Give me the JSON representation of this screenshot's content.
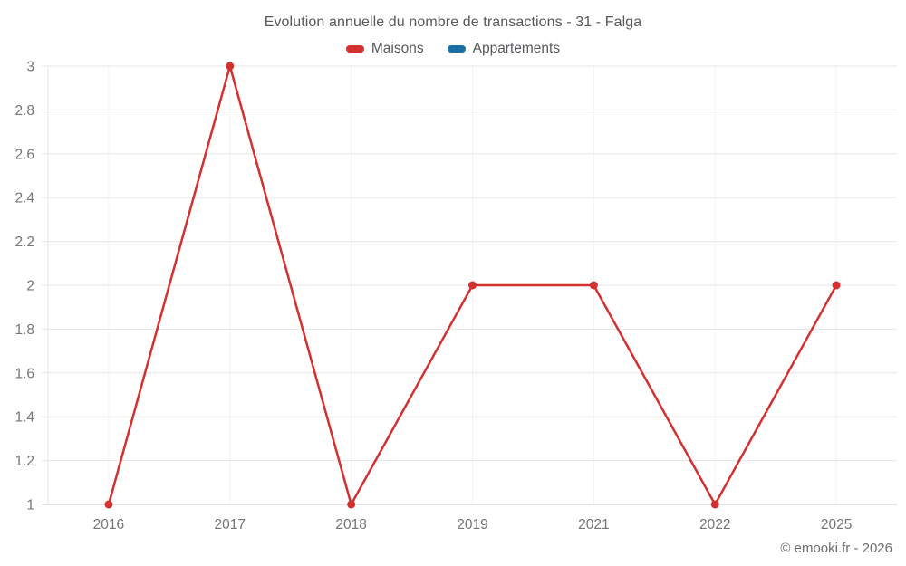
{
  "page": {
    "footer": "© emooki.fr - 2026"
  },
  "chart_data": {
    "type": "line",
    "title": "Evolution annuelle du nombre de transactions - 31 - Falga",
    "categories": [
      "2016",
      "2017",
      "2018",
      "2019",
      "2021",
      "2022",
      "2025"
    ],
    "series": [
      {
        "name": "Maisons",
        "color": "#d3302f",
        "values": [
          1,
          3,
          1,
          2,
          2,
          1,
          2
        ]
      },
      {
        "name": "Appartements",
        "color": "#1a6fa8",
        "values": []
      }
    ],
    "xlabel": "",
    "ylabel": "",
    "ylim": [
      1,
      3
    ],
    "ytick_step": 0.2,
    "grid": true,
    "legend_position": "top",
    "colors": {
      "h_grid": "#e6e6e6",
      "v_grid": "#f2f2f2",
      "axis_line": "#c9c9c9",
      "tick_label": "#757575"
    }
  }
}
